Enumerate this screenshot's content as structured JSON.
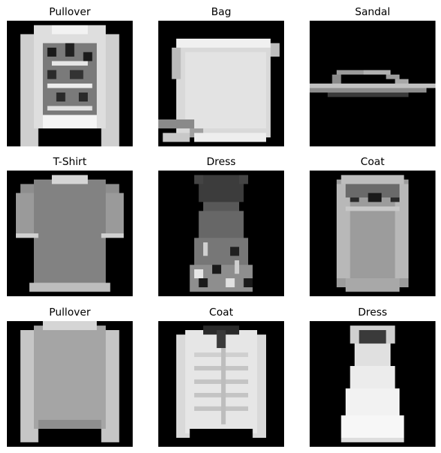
{
  "figure": {
    "background_color": "#ffffff",
    "image_background_color": "#000000",
    "colormap": "grayscale",
    "panels": [
      {
        "title": "Pullover",
        "item": "pullover"
      },
      {
        "title": "Bag",
        "item": "bag"
      },
      {
        "title": "Sandal",
        "item": "sandal"
      },
      {
        "title": "T-Shirt",
        "item": "tshirt"
      },
      {
        "title": "Dress",
        "item": "dress"
      },
      {
        "title": "Coat",
        "item": "coat"
      },
      {
        "title": "Pullover",
        "item": "pullover"
      },
      {
        "title": "Coat",
        "item": "coat"
      },
      {
        "title": "Dress",
        "item": "dress"
      }
    ]
  }
}
